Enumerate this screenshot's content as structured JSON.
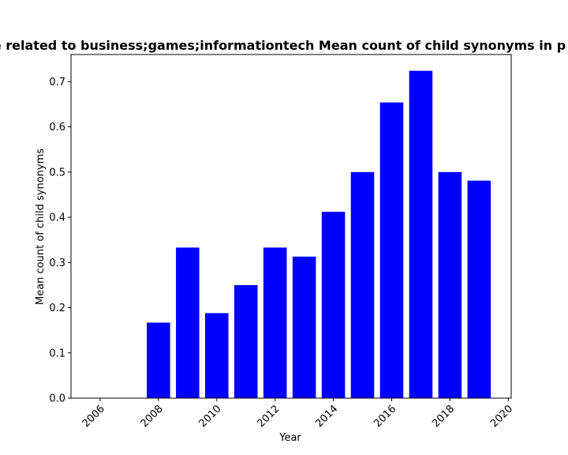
{
  "chart_data": {
    "type": "bar",
    "title": "e related to business;games;informationtech Mean count of child synonyms in p",
    "xlabel": "Year",
    "ylabel": "Mean count of child synonyms",
    "x": [
      2008,
      2009,
      2010,
      2011,
      2012,
      2013,
      2014,
      2015,
      2016,
      2017,
      2018,
      2019
    ],
    "values": [
      0.167,
      0.333,
      0.188,
      0.25,
      0.333,
      0.313,
      0.412,
      0.5,
      0.654,
      0.724,
      0.5,
      0.481
    ],
    "xlim": [
      2005.0,
      2020.1
    ],
    "ylim": [
      0,
      0.76
    ],
    "xticks": [
      2006,
      2008,
      2010,
      2012,
      2014,
      2016,
      2018,
      2020
    ],
    "yticks": [
      0.0,
      0.1,
      0.2,
      0.3,
      0.4,
      0.5,
      0.6,
      0.7
    ],
    "bar_color": "#0000ff",
    "grid": false,
    "legend": "none"
  }
}
